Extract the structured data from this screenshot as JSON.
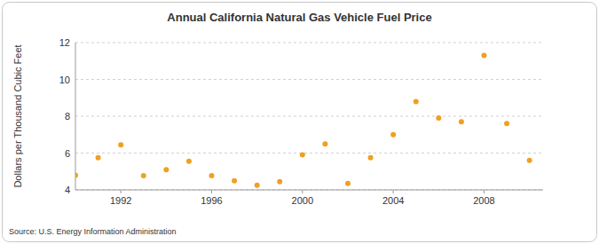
{
  "chart_data": {
    "type": "scatter",
    "title": "Annual California Natural Gas Vehicle Fuel Price",
    "y_label": "Dollars per Thousand Cubic Feet",
    "source": "Source: U.S. Energy Information Administration",
    "x": [
      1990,
      1991,
      1992,
      1993,
      1994,
      1995,
      1996,
      1997,
      1998,
      1999,
      2000,
      2001,
      2002,
      2003,
      2004,
      2005,
      2006,
      2007,
      2008,
      2009,
      2010
    ],
    "values": [
      4.8,
      5.75,
      6.45,
      4.77,
      5.1,
      5.55,
      4.77,
      4.5,
      4.25,
      4.45,
      5.9,
      6.5,
      4.35,
      5.75,
      7.0,
      8.8,
      7.9,
      7.7,
      11.3,
      7.6,
      5.6
    ],
    "color": "#f0a020",
    "marker": "circle",
    "xlim": [
      1990,
      2010.6
    ],
    "xticks": [
      1992,
      1996,
      2000,
      2004,
      2008
    ],
    "ylim": [
      4,
      12
    ],
    "yticks": [
      4,
      6,
      8,
      10,
      12
    ],
    "grid": true
  }
}
